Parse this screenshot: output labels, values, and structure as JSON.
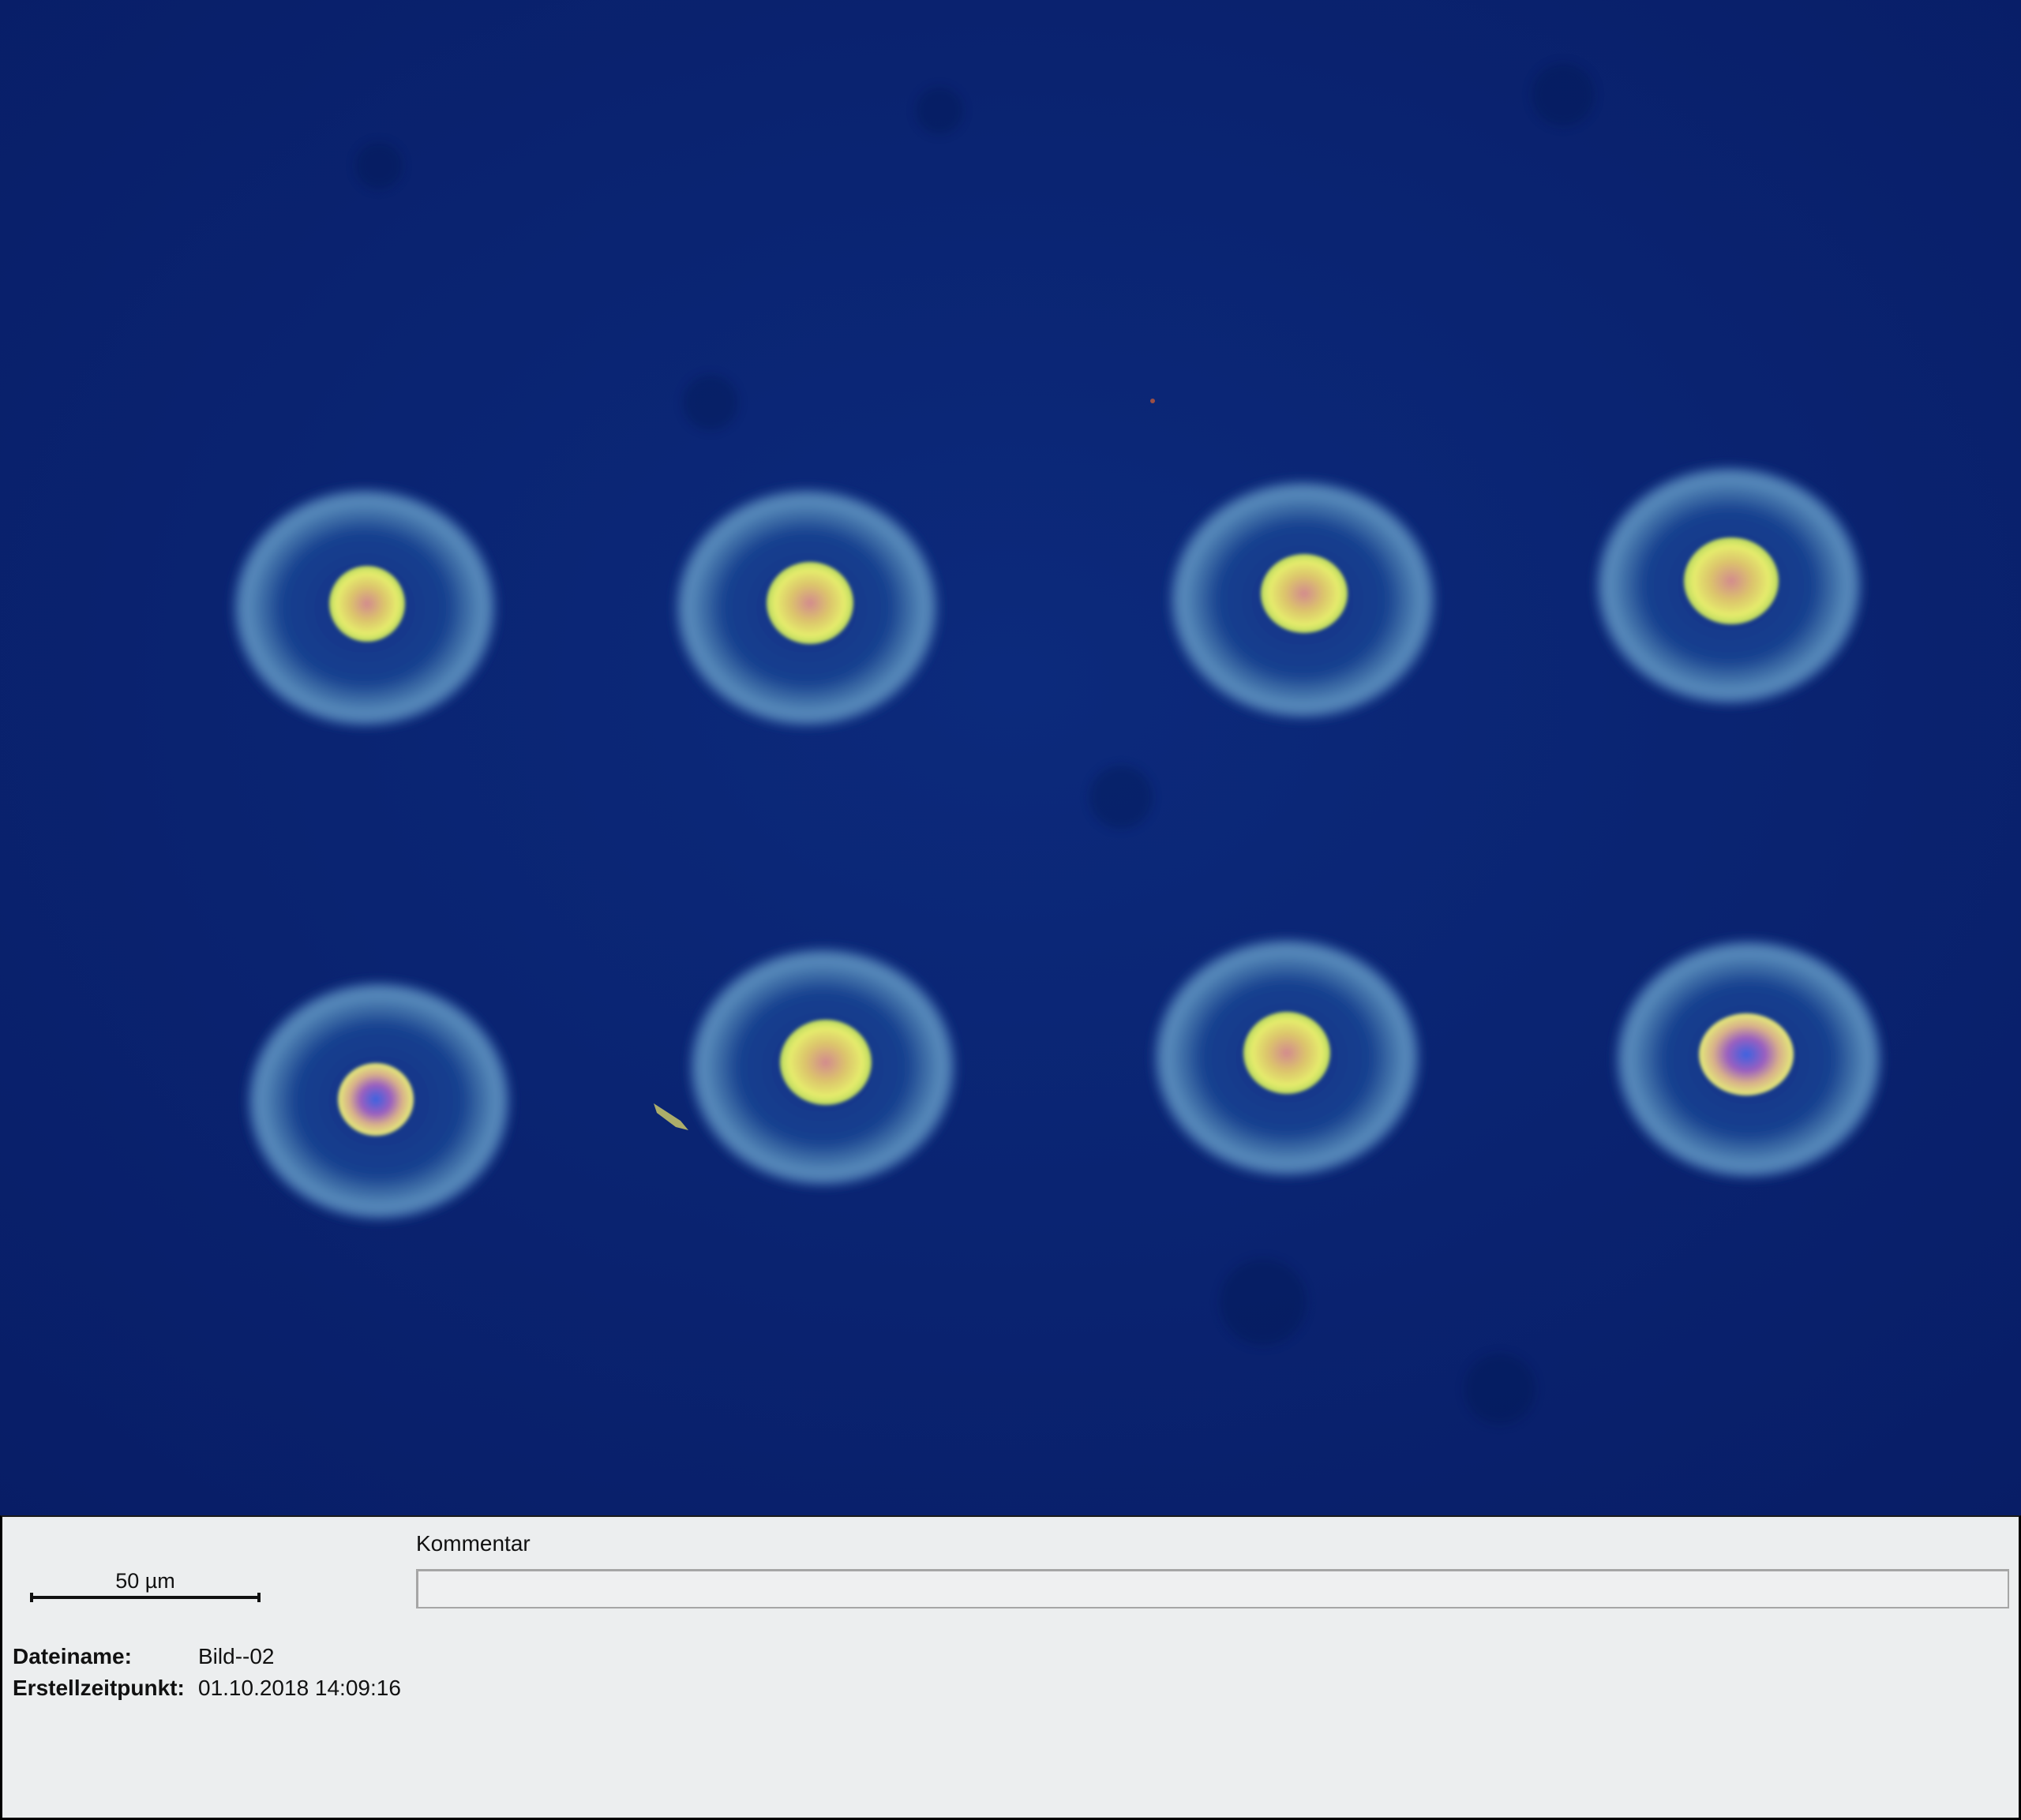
{
  "image": {
    "description_colors": {
      "background": "#0a2373",
      "ring": "#4f7fb4",
      "core": "#dfe86a",
      "core_tint": "#c87aa0",
      "core_blue": "#3f5fd8"
    }
  },
  "scalebar": {
    "label": "50 µm"
  },
  "comment": {
    "label": "Kommentar",
    "value": ""
  },
  "metadata": {
    "filename_label": "Dateiname:",
    "filename_value": "Bild--02",
    "created_label": "Erstellzeitpunkt:",
    "created_value": "01.10.2018 14:09:16"
  }
}
